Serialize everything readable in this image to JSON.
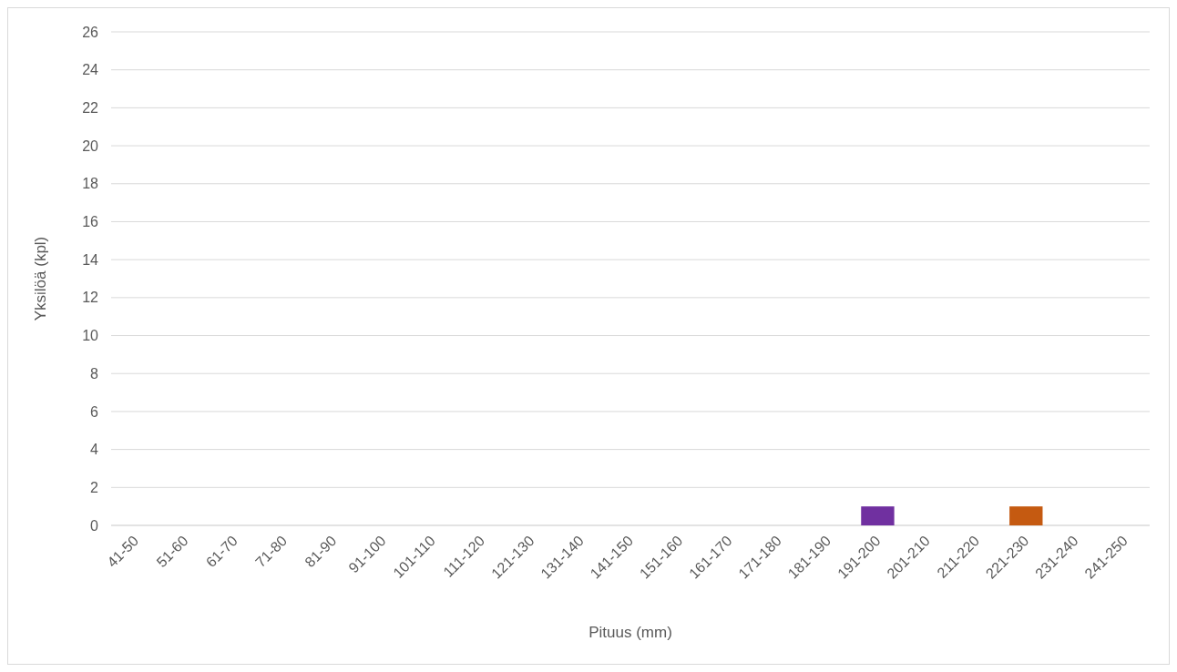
{
  "chart_data": {
    "type": "bar",
    "xlabel": "Pituus (mm)",
    "ylabel": "Yksilöä (kpl)",
    "categories": [
      "41-50",
      "51-60",
      "61-70",
      "71-80",
      "81-90",
      "91-100",
      "101-110",
      "111-120",
      "121-130",
      "131-140",
      "141-150",
      "151-160",
      "161-170",
      "171-180",
      "181-190",
      "191-200",
      "201-210",
      "211-220",
      "221-230",
      "231-240",
      "241-250"
    ],
    "values": [
      0,
      0,
      0,
      0,
      0,
      0,
      0,
      0,
      0,
      0,
      0,
      0,
      0,
      0,
      0,
      1,
      0,
      0,
      1,
      0,
      0
    ],
    "colors": [
      "#7030a0",
      "#7030a0",
      "#7030a0",
      "#7030a0",
      "#7030a0",
      "#7030a0",
      "#7030a0",
      "#7030a0",
      "#7030a0",
      "#7030a0",
      "#7030a0",
      "#7030a0",
      "#7030a0",
      "#7030a0",
      "#7030a0",
      "#7030a0",
      "#7030a0",
      "#7030a0",
      "#c55a11",
      "#7030a0",
      "#7030a0"
    ],
    "ylim": [
      0,
      26
    ],
    "yticks": [
      0,
      2,
      4,
      6,
      8,
      10,
      12,
      14,
      16,
      18,
      20,
      22,
      24,
      26
    ],
    "grid": "y"
  }
}
